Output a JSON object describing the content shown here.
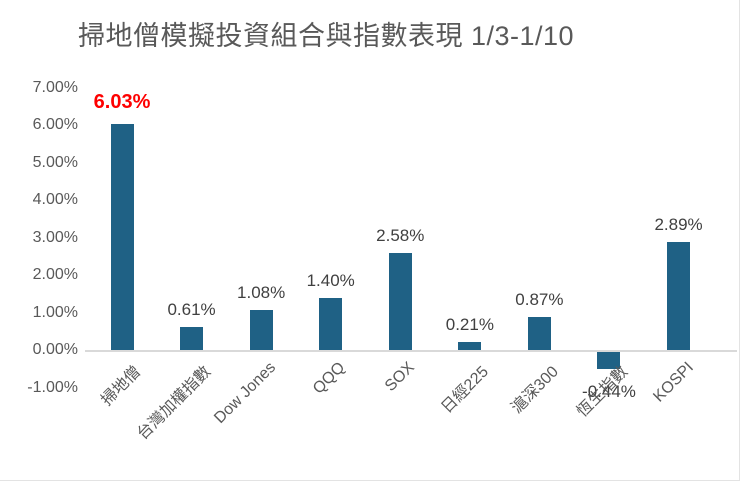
{
  "title": "掃地僧模擬投資組合與指數表現 1/3-1/10",
  "colors": {
    "bar_fill": "#1F6185",
    "highlight_label": "#FE0000",
    "value_label": "#404040",
    "axis_text": "#595959",
    "axis_line": "#D9D9D9",
    "title_text": "#595959"
  },
  "y_axis": {
    "tick_labels": [
      "7.00%",
      "6.00%",
      "5.00%",
      "4.00%",
      "3.00%",
      "2.00%",
      "1.00%",
      "0.00%",
      "-1.00%"
    ],
    "tick_values": [
      7,
      6,
      5,
      4,
      3,
      2,
      1,
      0,
      -1
    ]
  },
  "chart_data": {
    "type": "bar",
    "title": "掃地僧模擬投資組合與指數表現 1/3-1/10",
    "categories": [
      "掃地僧",
      "台灣加權指數",
      "Dow Jones",
      "QQQ",
      "SOX",
      "日經225",
      "滬深300",
      "恆生指數",
      "KOSPI"
    ],
    "values": [
      6.03,
      0.61,
      1.08,
      1.4,
      2.58,
      0.21,
      0.87,
      -0.44,
      2.89
    ],
    "data_labels": [
      "6.03%",
      "0.61%",
      "1.08%",
      "1.40%",
      "2.58%",
      "0.21%",
      "0.87%",
      "-0.44%",
      "2.89%"
    ],
    "highlight_index": 0,
    "xlabel": "",
    "ylabel": "",
    "ylim": [
      -1,
      7
    ],
    "grid": false,
    "legend": false,
    "x_label_rotation_deg": -45
  }
}
